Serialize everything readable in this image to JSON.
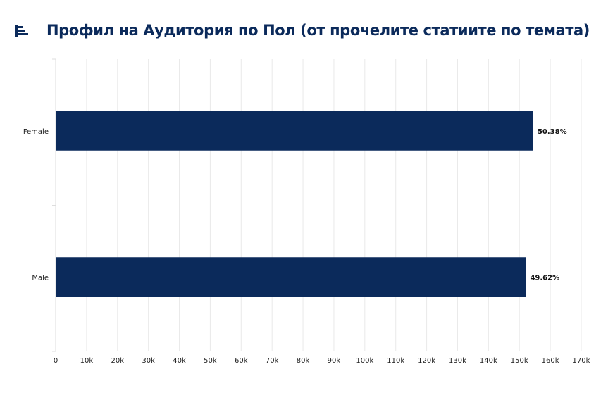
{
  "title": "Профил на Аудитория по Пол (от прочелите статиите по темата)",
  "icon": "bar-chart-icon",
  "colors": {
    "bar": "#0b2a5b",
    "title": "#0b2a5b",
    "grid": "#e9e9e9",
    "axis": "#dddddd"
  },
  "chart_data": {
    "type": "bar",
    "orientation": "horizontal",
    "categories": [
      "Female",
      "Male"
    ],
    "values": [
      154500,
      152100
    ],
    "data_labels": [
      "50.38%",
      "49.62%"
    ],
    "x_ticks": [
      "0",
      "10k",
      "20k",
      "30k",
      "40k",
      "50k",
      "60k",
      "70k",
      "80k",
      "90k",
      "100k",
      "110k",
      "120k",
      "130k",
      "140k",
      "150k",
      "160k",
      "170k"
    ],
    "xlim": [
      0,
      170000
    ],
    "grid": true,
    "legend": "none",
    "xlabel": "",
    "ylabel": ""
  }
}
